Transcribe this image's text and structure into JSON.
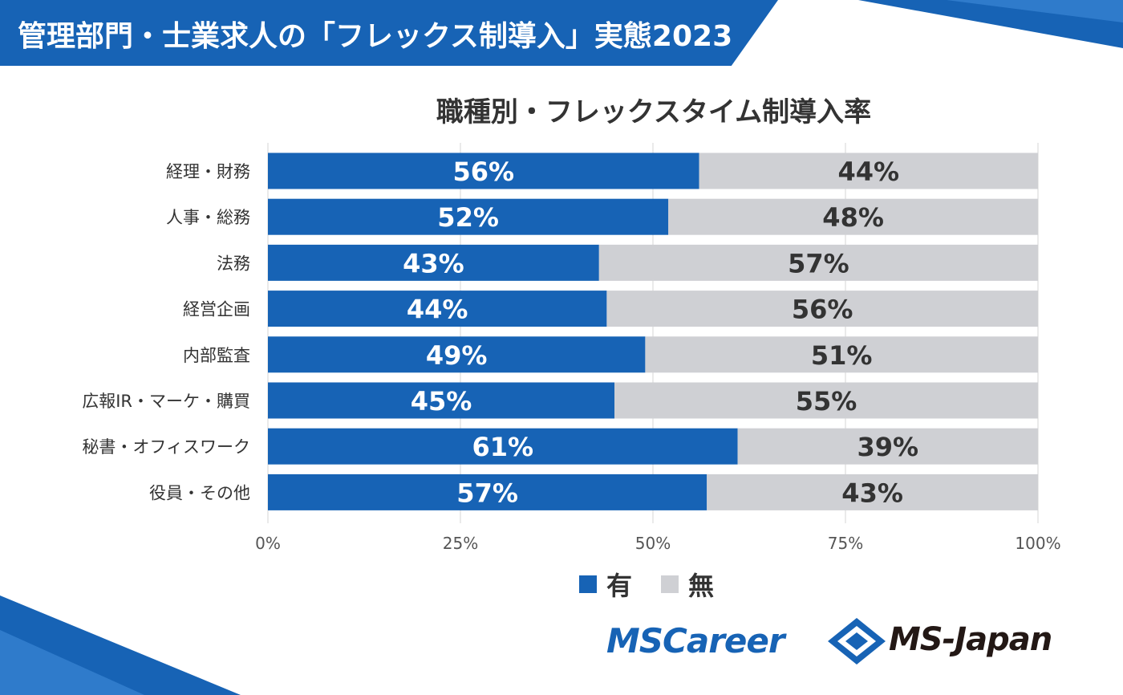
{
  "banner": {
    "title": "管理部門・士業求人の「フレックス制導入」実態2023"
  },
  "colors": {
    "banner": "#1763b5",
    "yes": "#1763b5",
    "no": "#cfd0d4",
    "grid": "#e3e3e3"
  },
  "chart_data": {
    "type": "bar",
    "orientation": "horizontal",
    "stacked": true,
    "title": "職種別・フレックスタイム制導入率",
    "categories": [
      "経理・財務",
      "人事・総務",
      "法務",
      "経営企画",
      "内部監査",
      "広報IR・マーケ・購買",
      "秘書・オフィスワーク",
      "役員・その他"
    ],
    "series": [
      {
        "name": "有",
        "color": "#1763b5",
        "values": [
          56,
          52,
          43,
          44,
          49,
          45,
          61,
          57
        ],
        "labels": [
          "56%",
          "52%",
          "43%",
          "44%",
          "49%",
          "45%",
          "61%",
          "57%"
        ]
      },
      {
        "name": "無",
        "color": "#cfd0d4",
        "values": [
          44,
          48,
          57,
          56,
          51,
          55,
          39,
          43
        ],
        "labels": [
          "44%",
          "48%",
          "57%",
          "56%",
          "51%",
          "55%",
          "39%",
          "43%"
        ]
      }
    ],
    "xlim": [
      0,
      100
    ],
    "xticks": [
      0,
      25,
      50,
      75,
      100
    ],
    "xtick_labels": [
      "0%",
      "25%",
      "50%",
      "75%",
      "100%"
    ],
    "grid": true,
    "legend_position": "bottom"
  },
  "logos": {
    "left": "MSCareer",
    "right": "MS-Japan"
  }
}
